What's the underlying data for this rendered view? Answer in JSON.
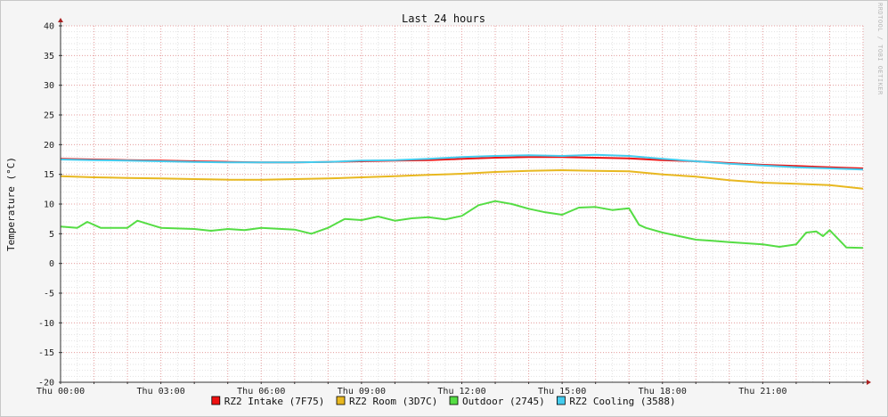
{
  "chart_data": {
    "type": "line",
    "title": "Last 24 hours",
    "xlabel": "",
    "ylabel": "Temperature (°C)",
    "ylim": [
      -20,
      40
    ],
    "xlim": [
      0,
      24
    ],
    "y_ticks": [
      40,
      35,
      30,
      25,
      20,
      15,
      10,
      5,
      0,
      -5,
      -10,
      -15,
      -20
    ],
    "x_ticks": [
      {
        "t": 0,
        "label": "Thu 00:00"
      },
      {
        "t": 3,
        "label": "Thu 03:00"
      },
      {
        "t": 6,
        "label": "Thu 06:00"
      },
      {
        "t": 9,
        "label": "Thu 09:00"
      },
      {
        "t": 12,
        "label": "Thu 12:00"
      },
      {
        "t": 15,
        "label": "Thu 15:00"
      },
      {
        "t": 18,
        "label": "Thu 18:00"
      },
      {
        "t": 21,
        "label": "Thu 21:00"
      }
    ],
    "grid": true,
    "legend_position": "bottom",
    "watermark": "RRDTOOL / TOBI OETIKER",
    "series": [
      {
        "name": "RZ2 Intake (7F75)",
        "color": "#ee1111",
        "x": [
          0,
          1,
          2,
          3,
          4,
          5,
          6,
          7,
          8,
          9,
          10,
          11,
          12,
          13,
          14,
          15,
          16,
          17,
          18,
          19,
          20,
          21,
          22,
          23,
          24
        ],
        "values": [
          17.6,
          17.5,
          17.4,
          17.3,
          17.2,
          17.1,
          17.0,
          17.0,
          17.1,
          17.2,
          17.3,
          17.4,
          17.6,
          17.8,
          17.9,
          17.9,
          17.8,
          17.7,
          17.4,
          17.2,
          16.9,
          16.6,
          16.4,
          16.2,
          16.0
        ]
      },
      {
        "name": "RZ2 Room (3D7C)",
        "color": "#e8b820",
        "x": [
          0,
          1,
          2,
          3,
          4,
          5,
          6,
          7,
          8,
          9,
          10,
          11,
          12,
          13,
          14,
          15,
          16,
          17,
          18,
          19,
          20,
          21,
          22,
          23,
          24
        ],
        "values": [
          14.7,
          14.5,
          14.4,
          14.3,
          14.2,
          14.1,
          14.1,
          14.2,
          14.3,
          14.5,
          14.7,
          14.9,
          15.1,
          15.4,
          15.6,
          15.7,
          15.6,
          15.5,
          15.0,
          14.6,
          14.0,
          13.6,
          13.4,
          13.2,
          12.6
        ]
      },
      {
        "name": "Outdoor (2745)",
        "color": "#55dd44",
        "x": [
          0,
          0.5,
          0.8,
          1.2,
          2,
          2.3,
          3,
          4,
          4.5,
          5,
          5.5,
          6,
          7,
          7.5,
          8,
          8.5,
          9,
          9.5,
          10,
          10.5,
          11,
          11.5,
          12,
          12.5,
          13,
          13.5,
          14,
          14.5,
          15,
          15.5,
          16,
          16.5,
          17,
          17.3,
          17.5,
          18,
          18.5,
          19,
          19.5,
          20,
          20.5,
          21,
          21.5,
          22,
          22.3,
          22.6,
          22.8,
          23,
          23.5,
          24
        ],
        "values": [
          6.2,
          6.0,
          7.0,
          6.0,
          6.0,
          7.2,
          6.0,
          5.8,
          5.5,
          5.8,
          5.6,
          6.0,
          5.7,
          5.0,
          6.0,
          7.5,
          7.3,
          7.9,
          7.2,
          7.6,
          7.8,
          7.4,
          8.0,
          9.8,
          10.5,
          10.0,
          9.2,
          8.6,
          8.2,
          9.4,
          9.5,
          9.0,
          9.3,
          6.5,
          6.0,
          5.2,
          4.6,
          4.0,
          3.8,
          3.6,
          3.4,
          3.2,
          2.8,
          3.2,
          5.2,
          5.4,
          4.6,
          5.6,
          2.7,
          2.6
        ]
      },
      {
        "name": "RZ2 Cooling (3588)",
        "color": "#44ccee",
        "x": [
          0,
          1,
          2,
          3,
          4,
          5,
          6,
          7,
          8,
          9,
          10,
          11,
          12,
          13,
          14,
          15,
          16,
          17,
          18,
          19,
          20,
          21,
          22,
          23,
          24
        ],
        "values": [
          17.5,
          17.4,
          17.3,
          17.2,
          17.1,
          17.0,
          17.0,
          17.0,
          17.1,
          17.3,
          17.4,
          17.6,
          17.9,
          18.1,
          18.2,
          18.1,
          18.3,
          18.1,
          17.6,
          17.2,
          16.8,
          16.5,
          16.2,
          16.0,
          15.8
        ]
      }
    ]
  }
}
